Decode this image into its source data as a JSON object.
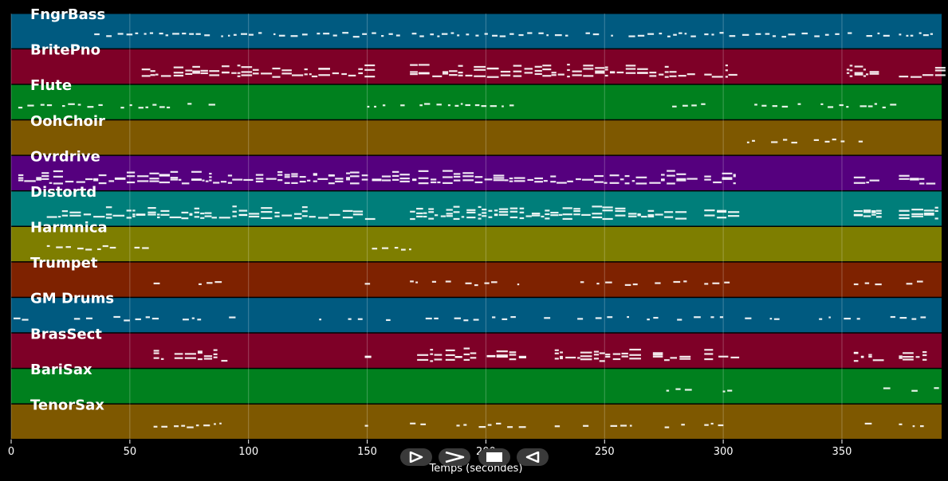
{
  "plot": {
    "xlim": [
      0,
      392
    ],
    "ticks": [
      0,
      50,
      100,
      150,
      200,
      250,
      300,
      350
    ],
    "xlabel": "Temps (secondes)",
    "grid": true
  },
  "tracks": [
    {
      "name": "FngrBass",
      "color": "#005a80",
      "density": 0.9,
      "segments": [
        [
          35,
          290
        ],
        [
          292,
          305
        ],
        [
          308,
          370
        ],
        [
          374,
          390
        ]
      ],
      "dense": false
    },
    {
      "name": "BritePno",
      "color": "#7e0027",
      "density": 1.0,
      "segments": [
        [
          55,
          150
        ],
        [
          168,
          285
        ],
        [
          292,
          305
        ],
        [
          352,
          363
        ],
        [
          374,
          390
        ]
      ],
      "dense": true
    },
    {
      "name": "Flute",
      "color": "#00801e",
      "density": 0.8,
      "segments": [
        [
          3,
          87
        ],
        [
          150,
          210
        ],
        [
          274,
          293
        ],
        [
          310,
          375
        ]
      ],
      "dense": false
    },
    {
      "name": "OohChoir",
      "color": "#7e5800",
      "density": 0.7,
      "segments": [
        [
          310,
          365
        ]
      ],
      "dense": false
    },
    {
      "name": "Ovrdrive",
      "color": "#55007e",
      "density": 1.0,
      "segments": [
        [
          3,
          150
        ],
        [
          152,
          285
        ],
        [
          292,
          305
        ],
        [
          355,
          365
        ],
        [
          374,
          390
        ]
      ],
      "dense": true
    },
    {
      "name": "Distortd",
      "color": "#007e7a",
      "density": 1.0,
      "segments": [
        [
          15,
          150
        ],
        [
          168,
          285
        ],
        [
          292,
          305
        ],
        [
          355,
          365
        ],
        [
          374,
          390
        ]
      ],
      "dense": true
    },
    {
      "name": "Harmnica",
      "color": "#7e7e00",
      "density": 0.9,
      "segments": [
        [
          12,
          57
        ],
        [
          152,
          168
        ]
      ],
      "dense": false
    },
    {
      "name": "Trumpet",
      "color": "#7e2200",
      "density": 0.7,
      "segments": [
        [
          60,
          90
        ],
        [
          149,
          152
        ],
        [
          168,
          180
        ],
        [
          183,
          215
        ],
        [
          229,
          285
        ],
        [
          292,
          305
        ],
        [
          355,
          365
        ],
        [
          374,
          390
        ]
      ],
      "dense": false
    },
    {
      "name": "GM Drums",
      "color": "#005a80",
      "density": 0.4,
      "segments": [
        [
          1,
          390
        ]
      ],
      "dense": false
    },
    {
      "name": "BrasSect",
      "color": "#7e0027",
      "density": 0.8,
      "segments": [
        [
          60,
          90
        ],
        [
          149,
          152
        ],
        [
          168,
          180
        ],
        [
          183,
          215
        ],
        [
          229,
          285
        ],
        [
          292,
          305
        ],
        [
          355,
          365
        ],
        [
          374,
          390
        ]
      ],
      "dense": true
    },
    {
      "name": "BariSax",
      "color": "#00801e",
      "density": 0.5,
      "segments": [
        [
          276,
          285
        ],
        [
          292,
          305
        ],
        [
          326,
          340
        ],
        [
          345,
          370
        ],
        [
          374,
          390
        ]
      ],
      "dense": false
    },
    {
      "name": "TenorSax",
      "color": "#7e5800",
      "density": 0.7,
      "segments": [
        [
          60,
          90
        ],
        [
          149,
          152
        ],
        [
          168,
          180
        ],
        [
          183,
          215
        ],
        [
          229,
          285
        ],
        [
          292,
          305
        ],
        [
          355,
          365
        ],
        [
          374,
          390
        ]
      ],
      "dense": false
    }
  ],
  "controls": [
    {
      "name": "play-button",
      "icon": "play-icon"
    },
    {
      "name": "fast-forward-button",
      "icon": "fast-forward-icon"
    },
    {
      "name": "stop-button",
      "icon": "stop-icon"
    },
    {
      "name": "rewind-button",
      "icon": "rewind-icon"
    }
  ]
}
